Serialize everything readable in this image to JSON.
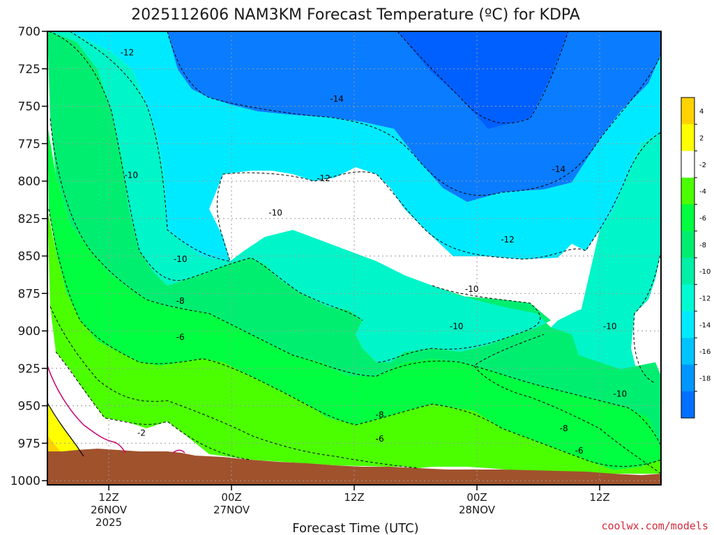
{
  "chart_data": {
    "type": "heatmap",
    "title": "2025112606 NAM3KM Forecast Temperature (ºC) for KDPA",
    "xlabel": "Forecast Time (UTC)",
    "ylabel": "",
    "credit": "coolwx.com/models",
    "x_range_hours": [
      0,
      60
    ],
    "x_ticks": [
      {
        "hour": 6,
        "label": "12Z",
        "sub": "26NOV",
        "sub2": "2025"
      },
      {
        "hour": 18,
        "label": "00Z",
        "sub": "27NOV",
        "sub2": ""
      },
      {
        "hour": 30,
        "label": "12Z",
        "sub": "",
        "sub2": ""
      },
      {
        "hour": 42,
        "label": "00Z",
        "sub": "28NOV",
        "sub2": ""
      },
      {
        "hour": 54,
        "label": "12Z",
        "sub": "",
        "sub2": ""
      }
    ],
    "y_range_hpa": [
      700,
      1000
    ],
    "y_ticks": [
      700,
      725,
      750,
      775,
      800,
      825,
      850,
      875,
      900,
      925,
      950,
      975,
      1000
    ],
    "y_tick_labels": [
      "700",
      "725",
      "750",
      "775",
      "800",
      "825",
      "850",
      "875",
      "900",
      "925",
      "950",
      "975",
      "1000"
    ],
    "colorbar": {
      "ticks": [
        "4",
        "2",
        "-2",
        "-4",
        "-6",
        "-8",
        "-10",
        "-12",
        "-14",
        "-16",
        "-18"
      ],
      "colors": [
        "#ffd200",
        "#ffff00",
        "#ffffff",
        "#4cff00",
        "#00ff40",
        "#00ee70",
        "#00f0a8",
        "#00fad2",
        "#00eaff",
        "#00c4ff",
        "#0096ff",
        "#0070ff"
      ]
    },
    "contour_levels": [
      -14,
      -12,
      -10,
      -8,
      -6,
      -4,
      -2,
      0,
      2,
      4
    ],
    "contour_labels": [
      {
        "text": "-12",
        "hour": 7.8,
        "p": 715
      },
      {
        "text": "-14",
        "hour": 28.3,
        "p": 746
      },
      {
        "text": "-10",
        "hour": 8.2,
        "p": 797
      },
      {
        "text": "-12",
        "hour": 27.0,
        "p": 799
      },
      {
        "text": "-14",
        "hour": 50.0,
        "p": 793
      },
      {
        "text": "-10",
        "hour": 22.3,
        "p": 822
      },
      {
        "text": "-12",
        "hour": 45.0,
        "p": 840
      },
      {
        "text": "-10",
        "hour": 13.0,
        "p": 853
      },
      {
        "text": "-10",
        "hour": 41.5,
        "p": 873
      },
      {
        "text": "-8",
        "hour": 13.0,
        "p": 881
      },
      {
        "text": "-10",
        "hour": 40.0,
        "p": 898
      },
      {
        "text": "-10",
        "hour": 55.0,
        "p": 898
      },
      {
        "text": "-6",
        "hour": 13.0,
        "p": 905
      },
      {
        "text": "-10",
        "hour": 56.0,
        "p": 943
      },
      {
        "text": "-8",
        "hour": 32.5,
        "p": 957
      },
      {
        "text": "-8",
        "hour": 50.5,
        "p": 966
      },
      {
        "text": "-2",
        "hour": 9.2,
        "p": 969
      },
      {
        "text": "-6",
        "hour": 32.5,
        "p": 973
      },
      {
        "text": "-6",
        "hour": 52.0,
        "p": 981
      }
    ]
  }
}
